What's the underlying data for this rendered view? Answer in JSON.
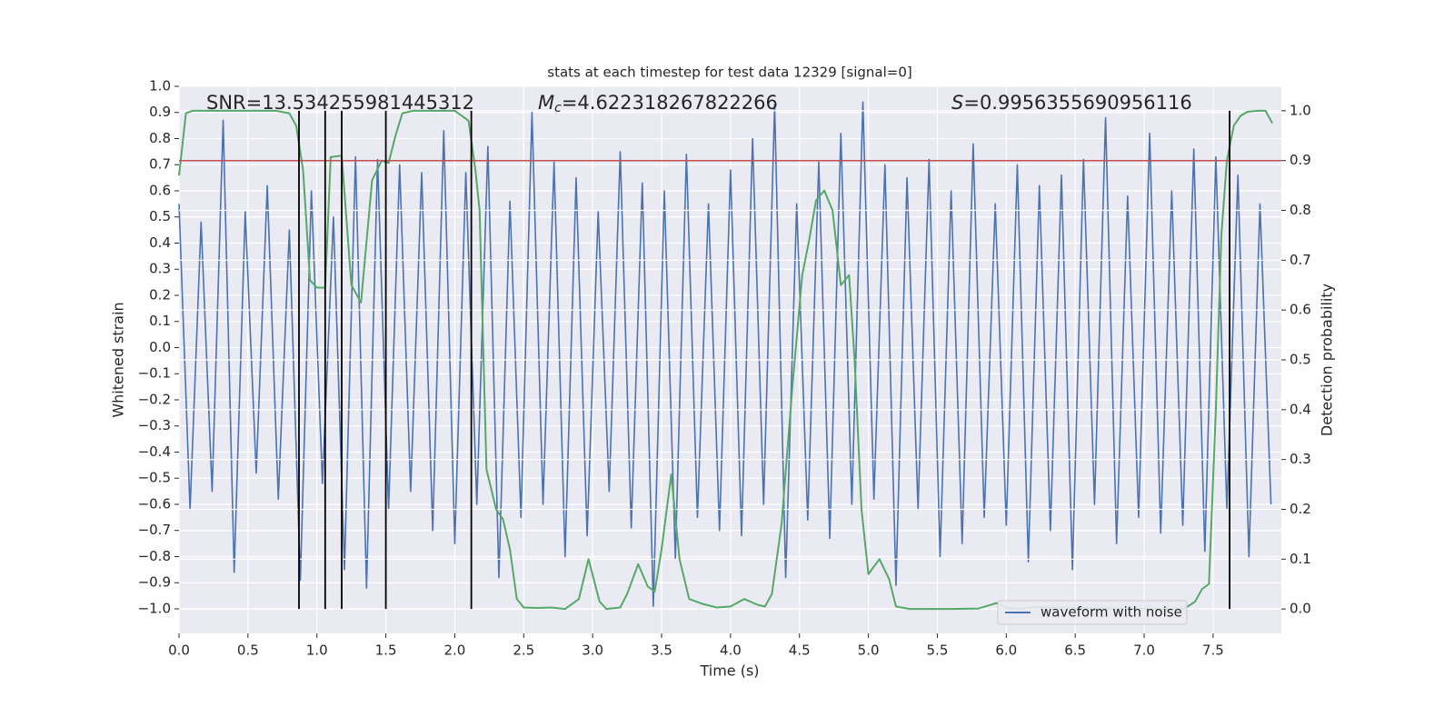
{
  "chart_data": {
    "type": "line",
    "title": "stats at each timestep for test data 12329 [signal=0]",
    "xlabel": "Time (s)",
    "ylabel": "Whitened strain",
    "y2label": "Detection probability",
    "xlim": [
      0,
      7.995
    ],
    "ylim": [
      -1.094,
      1.0
    ],
    "y2lim": [
      -0.049,
      1.049
    ],
    "xticks": [
      {
        "value": 0,
        "label": "0.0"
      },
      0.5,
      {
        "value": 1,
        "label": "1.0"
      },
      1.5,
      {
        "value": 2,
        "label": "2.0"
      },
      2.5,
      {
        "value": 3,
        "label": "3.0"
      },
      3.5,
      {
        "value": 4,
        "label": "4.0"
      },
      4.5,
      {
        "value": 5,
        "label": "5.0"
      },
      5.5,
      {
        "value": 6,
        "label": "6.0"
      },
      6.5,
      {
        "value": 7,
        "label": "7.0"
      },
      7.5
    ],
    "yticks": [
      {
        "value": -1,
        "label": "−1.0"
      },
      {
        "value": -0.9,
        "label": "−0.9"
      },
      {
        "value": -0.8,
        "label": "−0.8"
      },
      {
        "value": -0.7,
        "label": "−0.7"
      },
      {
        "value": -0.6,
        "label": "−0.6"
      },
      {
        "value": -0.5,
        "label": "−0.5"
      },
      {
        "value": -0.4,
        "label": "−0.4"
      },
      {
        "value": -0.3,
        "label": "−0.3"
      },
      {
        "value": -0.2,
        "label": "−0.2"
      },
      {
        "value": -0.1,
        "label": "−0.1"
      },
      {
        "value": 0,
        "label": "0.0"
      },
      0.1,
      0.2,
      0.3,
      0.4,
      0.5,
      0.6,
      0.7,
      0.8,
      0.9,
      {
        "value": 1,
        "label": "1.0"
      }
    ],
    "y2ticks": [
      {
        "value": 0,
        "label": "0.0"
      },
      0.1,
      0.2,
      0.3,
      0.4,
      0.5,
      0.6,
      0.7,
      0.8,
      0.9,
      {
        "value": 1,
        "label": "1.0"
      }
    ],
    "grid": true,
    "legend": "lower right",
    "series": [
      {
        "name": "waveform with noise",
        "color": "#4c72b0",
        "x": [
          0,
          0.08,
          0.16,
          0.24,
          0.32,
          0.4,
          0.48,
          0.56,
          0.64,
          0.72,
          0.8,
          0.88,
          0.96,
          1.04,
          1.12,
          1.2,
          1.28,
          1.36,
          1.44,
          1.52,
          1.6,
          1.68,
          1.76,
          1.84,
          1.92,
          2,
          2.08,
          2.16,
          2.24,
          2.32,
          2.4,
          2.48,
          2.56,
          2.64,
          2.72,
          2.8,
          2.88,
          2.96,
          3.04,
          3.12,
          3.2,
          3.28,
          3.36,
          3.44,
          3.52,
          3.6,
          3.68,
          3.76,
          3.84,
          3.92,
          4,
          4.08,
          4.16,
          4.24,
          4.32,
          4.4,
          4.48,
          4.56,
          4.64,
          4.72,
          4.8,
          4.88,
          4.96,
          5.04,
          5.12,
          5.2,
          5.28,
          5.36,
          5.44,
          5.52,
          5.6,
          5.68,
          5.76,
          5.84,
          5.92,
          6,
          6.08,
          6.16,
          6.24,
          6.32,
          6.4,
          6.48,
          6.56,
          6.64,
          6.72,
          6.8,
          6.88,
          6.96,
          7.04,
          7.12,
          7.2,
          7.28,
          7.36,
          7.44,
          7.52,
          7.6,
          7.68,
          7.76,
          7.84,
          7.92
        ],
        "values": [
          0.55,
          -0.62,
          0.48,
          -0.55,
          0.87,
          -0.86,
          0.52,
          -0.48,
          0.62,
          -0.58,
          0.45,
          -0.89,
          0.6,
          -0.52,
          0.5,
          -0.85,
          0.73,
          -0.92,
          0.72,
          -0.62,
          0.7,
          -0.55,
          0.67,
          -0.7,
          0.83,
          -0.75,
          0.67,
          -0.6,
          0.77,
          -0.88,
          0.56,
          -0.65,
          0.9,
          -0.6,
          0.71,
          -0.8,
          0.65,
          -0.72,
          0.52,
          -0.55,
          0.75,
          -0.69,
          0.63,
          -0.99,
          0.6,
          -0.81,
          0.74,
          -0.65,
          0.55,
          -0.7,
          0.68,
          -0.72,
          0.8,
          -0.6,
          0.93,
          -0.88,
          0.55,
          -0.66,
          0.71,
          -0.73,
          0.82,
          -0.6,
          0.94,
          -0.58,
          0.7,
          -0.91,
          0.65,
          -0.62,
          0.72,
          -0.8,
          0.6,
          -0.75,
          0.78,
          -0.65,
          0.55,
          -0.68,
          0.7,
          -0.82,
          0.62,
          -0.7,
          0.66,
          -0.85,
          0.72,
          -0.6,
          0.88,
          -0.75,
          0.58,
          -0.65,
          0.82,
          -0.71,
          0.6,
          -0.68,
          0.76,
          -0.78,
          0.73,
          -0.62,
          0.66,
          -0.8,
          0.55,
          -0.6
        ]
      },
      {
        "color": "#55a868",
        "axis": "y2",
        "x": [
          0,
          0.05,
          0.1,
          0.3,
          0.5,
          0.7,
          0.8,
          0.85,
          0.9,
          0.95,
          1,
          1.06,
          1.1,
          1.18,
          1.25,
          1.32,
          1.4,
          1.47,
          1.52,
          1.57,
          1.62,
          1.7,
          2,
          2.1,
          2.15,
          2.18,
          2.23,
          2.3,
          2.35,
          2.4,
          2.45,
          2.5,
          2.6,
          2.7,
          2.8,
          2.9,
          2.97,
          3.05,
          3.1,
          3.2,
          3.25,
          3.33,
          3.4,
          3.45,
          3.5,
          3.57,
          3.63,
          3.7,
          3.8,
          3.9,
          4,
          4.1,
          4.2,
          4.25,
          4.3,
          4.37,
          4.45,
          4.52,
          4.57,
          4.62,
          4.68,
          4.74,
          4.8,
          4.86,
          4.9,
          4.95,
          5,
          5.08,
          5.15,
          5.2,
          5.3,
          5.6,
          5.8,
          5.93,
          6,
          6.1,
          6.2,
          6.5,
          7.2,
          7.3,
          7.37,
          7.42,
          7.47,
          7.52,
          7.56,
          7.6,
          7.65,
          7.7,
          7.75,
          7.82,
          7.88,
          7.93
        ],
        "values": [
          0.87,
          0.995,
          1,
          1,
          1,
          1,
          0.995,
          0.97,
          0.88,
          0.66,
          0.645,
          0.645,
          0.907,
          0.91,
          0.65,
          0.615,
          0.86,
          0.9,
          0.895,
          0.95,
          0.995,
          1,
          1,
          0.98,
          0.88,
          0.8,
          0.28,
          0.2,
          0.18,
          0.12,
          0.02,
          0.003,
          0.002,
          0.003,
          0,
          0.02,
          0.1,
          0.015,
          0,
          0.003,
          0.03,
          0.09,
          0.045,
          0.035,
          0.12,
          0.27,
          0.1,
          0.02,
          0.01,
          0.003,
          0.005,
          0.02,
          0.008,
          0.005,
          0.03,
          0.17,
          0.45,
          0.67,
          0.74,
          0.82,
          0.84,
          0.8,
          0.65,
          0.67,
          0.5,
          0.2,
          0.07,
          0.1,
          0.06,
          0.005,
          0,
          0,
          0.001,
          0.012,
          0.002,
          0,
          0.004,
          0.002,
          0,
          0.002,
          0.015,
          0.04,
          0.05,
          0.4,
          0.75,
          0.9,
          0.97,
          0.99,
          0.998,
          1,
          1,
          0.975
        ]
      }
    ],
    "hlines": [
      {
        "y": 0.9,
        "axis": "y2",
        "color": "#c44e52"
      }
    ],
    "vlines": {
      "x": [
        0.87,
        1.06,
        1.18,
        1.5,
        2.12,
        7.62
      ],
      "ymin": 0,
      "ymax": 1,
      "axis": "y2",
      "color": "#000000"
    },
    "annotations": [
      {
        "text": "SNR=13.534255981445312"
      },
      {
        "symbol": "M",
        "subscript": "c",
        "text": "=4.622318267822266"
      },
      {
        "symbol": "S",
        "text": "=0.9956355690956116"
      }
    ]
  }
}
